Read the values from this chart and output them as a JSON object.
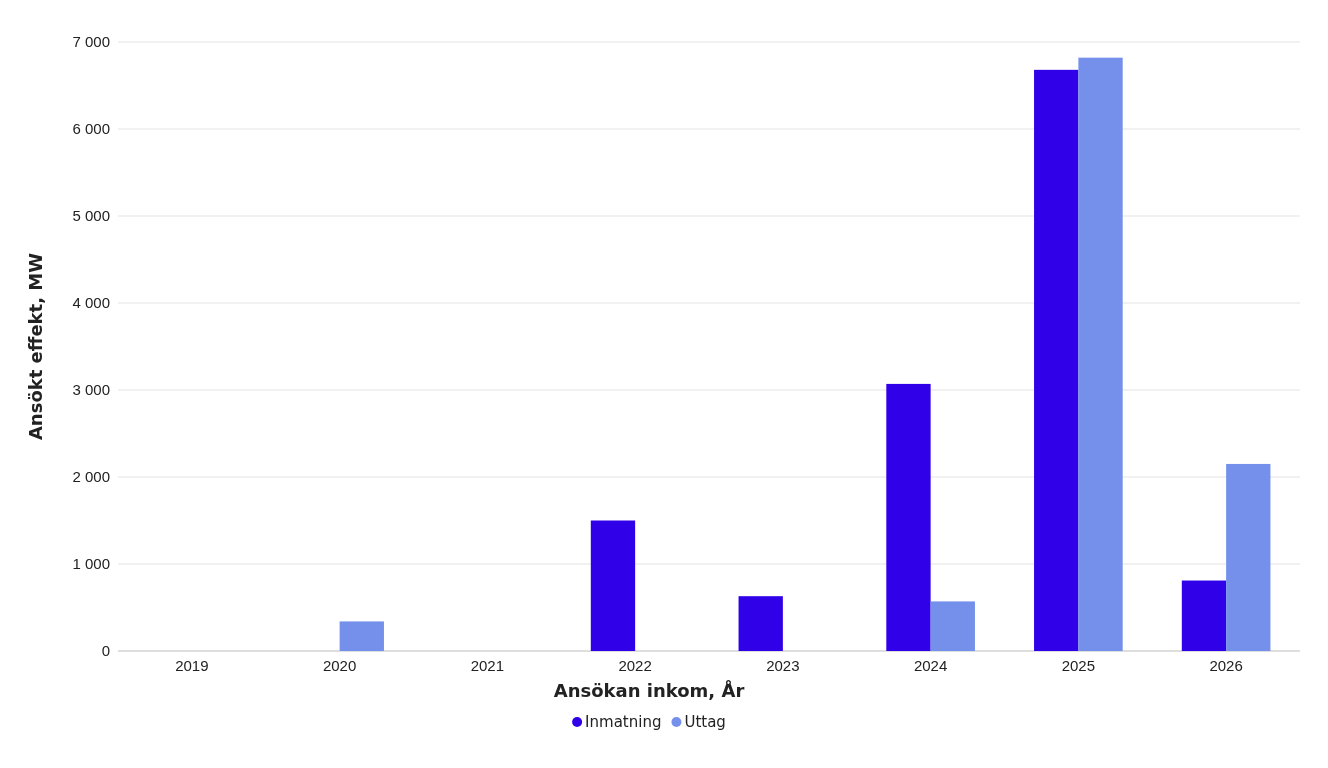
{
  "chart_data": {
    "type": "bar",
    "xlabel": "Ansökan inkom, År",
    "ylabel": "Ansökt effekt, MW",
    "categories": [
      "2019",
      "2020",
      "2021",
      "2022",
      "2023",
      "2024",
      "2025",
      "2026"
    ],
    "series": [
      {
        "name": "Inmatning",
        "color": "#3000e8",
        "values": [
          null,
          null,
          null,
          1500,
          630,
          3070,
          6680,
          810
        ]
      },
      {
        "name": "Uttag",
        "color": "#7590eb",
        "values": [
          null,
          340,
          null,
          null,
          null,
          570,
          6820,
          2150
        ]
      }
    ],
    "ylim": [
      0,
      7000
    ],
    "yticks": [
      {
        "value": 0,
        "label": "0"
      },
      {
        "value": 1000,
        "label": "1 000"
      },
      {
        "value": 2000,
        "label": "2 000"
      },
      {
        "value": 3000,
        "label": "3 000"
      },
      {
        "value": 4000,
        "label": "4 000"
      },
      {
        "value": 5000,
        "label": "5 000"
      },
      {
        "value": 6000,
        "label": "6 000"
      },
      {
        "value": 7000,
        "label": "7 000"
      }
    ],
    "grid": "y",
    "legend": "bottom"
  }
}
